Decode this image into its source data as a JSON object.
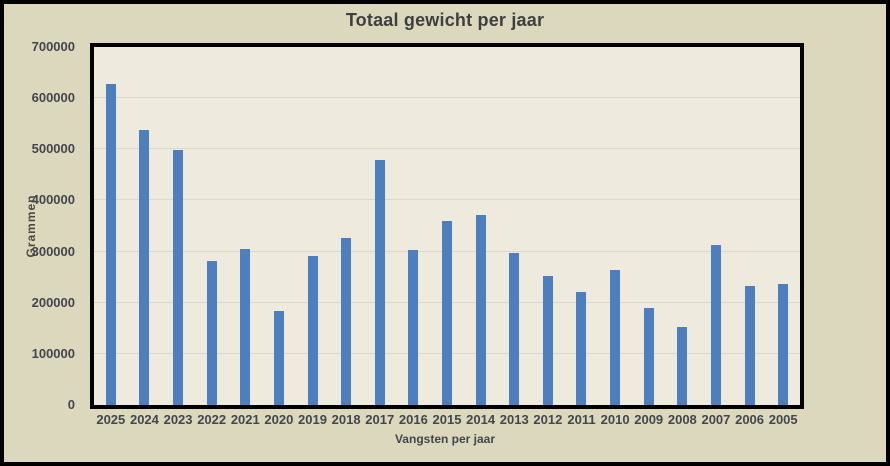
{
  "chart_data": {
    "type": "bar",
    "title": "Totaal gewicht per jaar",
    "xlabel": "Vangsten per jaar",
    "ylabel": "Grammen",
    "categories": [
      "2025",
      "2024",
      "2023",
      "2022",
      "2021",
      "2020",
      "2019",
      "2018",
      "2017",
      "2016",
      "2015",
      "2014",
      "2013",
      "2012",
      "2011",
      "2010",
      "2009",
      "2008",
      "2007",
      "2006",
      "2005"
    ],
    "values": [
      627000,
      537000,
      498000,
      282000,
      306000,
      183000,
      291000,
      327000,
      480000,
      303000,
      359000,
      372000,
      298000,
      253000,
      221000,
      264000,
      190000,
      153000,
      313000,
      232000,
      237000
    ],
    "ylim": [
      0,
      700000
    ],
    "yticks": [
      0,
      100000,
      200000,
      300000,
      400000,
      500000,
      600000,
      700000
    ],
    "grid": true,
    "legend": false,
    "series_name": "Totaal gewicht"
  },
  "colors": {
    "bar": "#4d7ebd",
    "outer_bg": "#dcd8bd",
    "plot_bg": "#eeebde",
    "gridline": "#d9d8cd",
    "border": "#000000",
    "title": "#3f3f3f",
    "text": "#42464d",
    "axis_title": "#4a4a3e"
  }
}
